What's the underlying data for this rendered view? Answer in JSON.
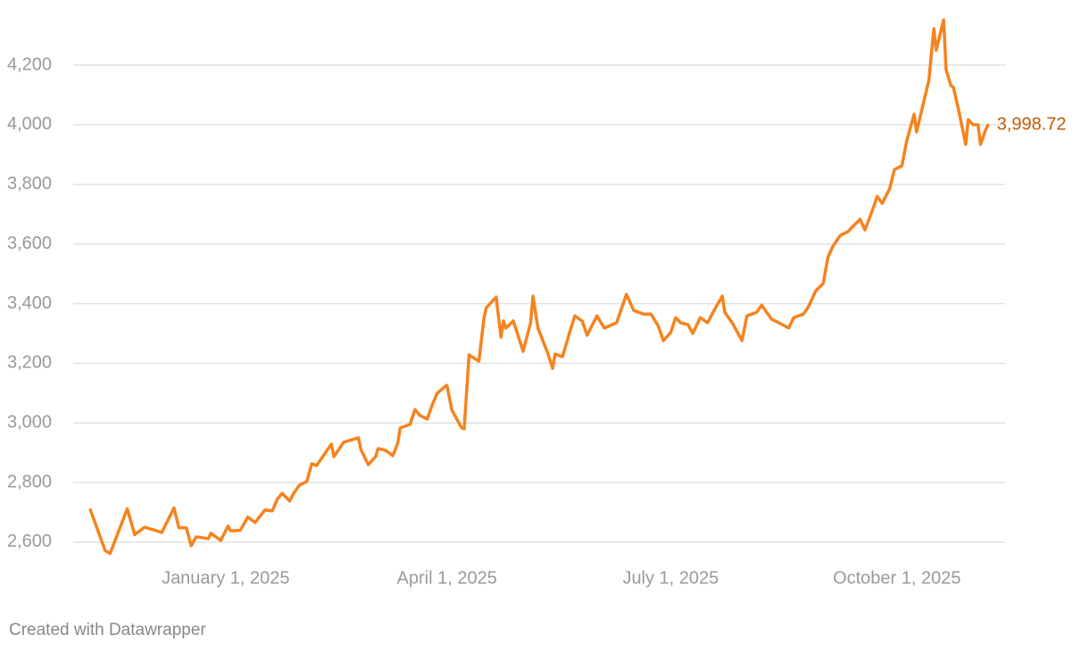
{
  "chart_data": {
    "type": "line",
    "color": "#f5831f",
    "value_label_color": "#c45a00",
    "grid": true,
    "credit": "Created with Datawrapper",
    "xlim": [
      "2024-10-31",
      "2025-11-14"
    ],
    "xticks": [
      {
        "value": "2025-01-01",
        "label": "January 1, 2025"
      },
      {
        "value": "2025-04-01",
        "label": "April 1, 2025"
      },
      {
        "value": "2025-07-01",
        "label": "July 1, 2025"
      },
      {
        "value": "2025-10-01",
        "label": "October 1, 2025"
      }
    ],
    "ylim": [
      2540,
      4370
    ],
    "yticks": [
      {
        "value": 2600,
        "label": "2,600"
      },
      {
        "value": 2800,
        "label": "2,800"
      },
      {
        "value": 3000,
        "label": "3,000"
      },
      {
        "value": 3200,
        "label": "3,200"
      },
      {
        "value": 3400,
        "label": "3,400"
      },
      {
        "value": 3600,
        "label": "3,600"
      },
      {
        "value": 3800,
        "label": "3,800"
      },
      {
        "value": 4000,
        "label": "4,000"
      },
      {
        "value": 4200,
        "label": "4,200"
      }
    ],
    "x": [
      "2024-11-07",
      "2024-11-13",
      "2024-11-15",
      "2024-11-22",
      "2024-11-25",
      "2024-11-29",
      "2024-12-04",
      "2024-12-06",
      "2024-12-11",
      "2024-12-13",
      "2024-12-16",
      "2024-12-18",
      "2024-12-20",
      "2024-12-25",
      "2024-12-26",
      "2024-12-30",
      "2025-01-02",
      "2025-01-03",
      "2025-01-07",
      "2025-01-10",
      "2025-01-13",
      "2025-01-17",
      "2025-01-20",
      "2025-01-22",
      "2025-01-24",
      "2025-01-27",
      "2025-01-29",
      "2025-01-31",
      "2025-02-03",
      "2025-02-05",
      "2025-02-07",
      "2025-02-11",
      "2025-02-13",
      "2025-02-14",
      "2025-02-18",
      "2025-02-24",
      "2025-02-25",
      "2025-02-28",
      "2025-03-03",
      "2025-03-04",
      "2025-03-07",
      "2025-03-10",
      "2025-03-12",
      "2025-03-13",
      "2025-03-17",
      "2025-03-19",
      "2025-03-21",
      "2025-03-24",
      "2025-03-26",
      "2025-03-28",
      "2025-03-31",
      "2025-04-01",
      "2025-04-03",
      "2025-04-07",
      "2025-04-08",
      "2025-04-10",
      "2025-04-14",
      "2025-04-16",
      "2025-04-17",
      "2025-04-21",
      "2025-04-23",
      "2025-04-24",
      "2025-04-25",
      "2025-04-28",
      "2025-05-02",
      "2025-05-05",
      "2025-05-06",
      "2025-05-08",
      "2025-05-12",
      "2025-05-14",
      "2025-05-15",
      "2025-05-18",
      "2025-05-21",
      "2025-05-23",
      "2025-05-26",
      "2025-05-28",
      "2025-06-01",
      "2025-06-04",
      "2025-06-09",
      "2025-06-13",
      "2025-06-16",
      "2025-06-20",
      "2025-06-23",
      "2025-06-26",
      "2025-06-28",
      "2025-07-01",
      "2025-07-03",
      "2025-07-05",
      "2025-07-08",
      "2025-07-10",
      "2025-07-13",
      "2025-07-16",
      "2025-07-19",
      "2025-07-22",
      "2025-07-23",
      "2025-07-26",
      "2025-07-30",
      "2025-08-01",
      "2025-08-05",
      "2025-08-07",
      "2025-08-11",
      "2025-08-14",
      "2025-08-18",
      "2025-08-20",
      "2025-08-24",
      "2025-08-26",
      "2025-08-29",
      "2025-09-01",
      "2025-09-03",
      "2025-09-05",
      "2025-09-08",
      "2025-09-11",
      "2025-09-16",
      "2025-09-18",
      "2025-09-21",
      "2025-09-23",
      "2025-09-25",
      "2025-09-28",
      "2025-09-30",
      "2025-10-03",
      "2025-10-05",
      "2025-10-08",
      "2025-10-09",
      "2025-10-14",
      "2025-10-16",
      "2025-10-17",
      "2025-10-20",
      "2025-10-21",
      "2025-10-23",
      "2025-10-24",
      "2025-10-26",
      "2025-10-29",
      "2025-10-30",
      "2025-11-01",
      "2025-11-03",
      "2025-11-04",
      "2025-11-06",
      "2025-11-07"
    ],
    "values": [
      2708,
      2572,
      2562,
      2712,
      2625,
      2650,
      2638,
      2632,
      2715,
      2648,
      2648,
      2588,
      2618,
      2612,
      2630,
      2606,
      2654,
      2638,
      2640,
      2684,
      2666,
      2708,
      2705,
      2744,
      2764,
      2738,
      2768,
      2791,
      2803,
      2863,
      2857,
      2905,
      2929,
      2887,
      2935,
      2950,
      2911,
      2860,
      2887,
      2914,
      2908,
      2890,
      2932,
      2983,
      2995,
      3045,
      3025,
      3013,
      3060,
      3099,
      3120,
      3126,
      3043,
      2983,
      2980,
      3228,
      3207,
      3348,
      3386,
      3422,
      3288,
      3342,
      3318,
      3342,
      3240,
      3335,
      3425,
      3318,
      3234,
      3183,
      3231,
      3222,
      3306,
      3359,
      3342,
      3294,
      3359,
      3318,
      3336,
      3431,
      3377,
      3365,
      3365,
      3324,
      3276,
      3303,
      3353,
      3336,
      3330,
      3300,
      3353,
      3336,
      3383,
      3425,
      3371,
      3336,
      3276,
      3359,
      3371,
      3395,
      3348,
      3336,
      3318,
      3353,
      3365,
      3389,
      3443,
      3467,
      3557,
      3593,
      3629,
      3641,
      3683,
      3647,
      3712,
      3760,
      3736,
      3784,
      3850,
      3862,
      3946,
      4035,
      3976,
      4149,
      4322,
      4250,
      4352,
      4185,
      4131,
      4125,
      4053,
      3934,
      4017,
      4000,
      4000,
      3934,
      3981,
      3998.72
    ],
    "value_labels": [
      null,
      null,
      null,
      null,
      null,
      null,
      null,
      null,
      null,
      null,
      null,
      null,
      null,
      null,
      null,
      null,
      null,
      null,
      null,
      null,
      null,
      null,
      null,
      null,
      null,
      null,
      null,
      null,
      null,
      null,
      null,
      null,
      null,
      null,
      null,
      null,
      null,
      null,
      null,
      null,
      null,
      null,
      null,
      null,
      null,
      null,
      null,
      null,
      null,
      null,
      null,
      null,
      null,
      null,
      null,
      null,
      null,
      null,
      null,
      null,
      null,
      null,
      null,
      null,
      null,
      null,
      null,
      null,
      null,
      null,
      null,
      null,
      null,
      null,
      null,
      null,
      null,
      null,
      null,
      null,
      null,
      null,
      null,
      null,
      null,
      null,
      null,
      null,
      null,
      null,
      null,
      null,
      null,
      null,
      null,
      null,
      null,
      null,
      null,
      null,
      null,
      null,
      null,
      null,
      null,
      null,
      null,
      null,
      null,
      null,
      null,
      null,
      null,
      null,
      null,
      null,
      null,
      null,
      null,
      null,
      null,
      null,
      null,
      null,
      null,
      null,
      null,
      null,
      null,
      null,
      null,
      null,
      null,
      null,
      null,
      null,
      null,
      "3,998.72"
    ]
  }
}
